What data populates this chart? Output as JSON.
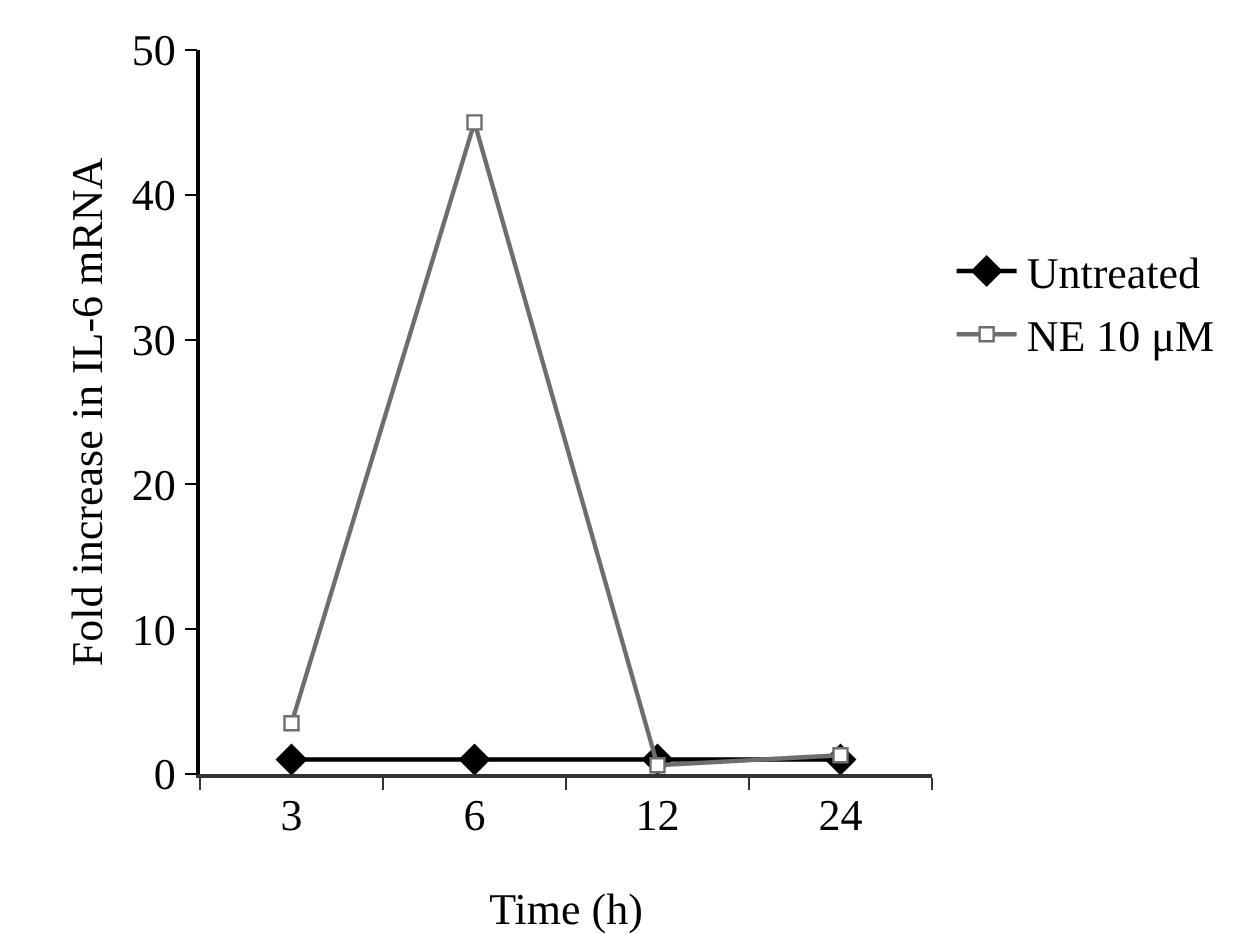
{
  "chart_data": {
    "type": "line",
    "xlabel": "Time (h)",
    "ylabel": "Fold increase in IL-6 mRNA",
    "categories": [
      "3",
      "6",
      "12",
      "24"
    ],
    "series": [
      {
        "name": "Untreated",
        "color": "#000000",
        "marker": "diamond",
        "values": [
          1,
          1,
          1,
          1
        ]
      },
      {
        "name": "NE 10 μM",
        "color": "#6e6e6e",
        "marker": "square",
        "values": [
          3.5,
          45,
          0.6,
          1.3
        ]
      }
    ],
    "ylim": [
      0,
      50
    ],
    "yticks": [
      0,
      10,
      20,
      30,
      40,
      50
    ],
    "grid": false,
    "legend": "right"
  }
}
